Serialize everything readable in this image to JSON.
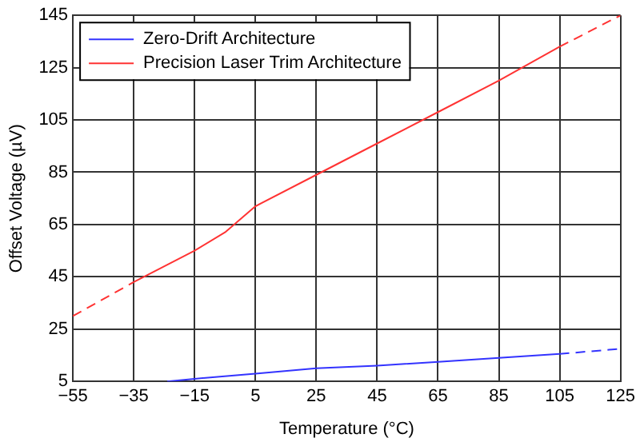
{
  "chart_data": {
    "type": "line",
    "xlabel": "Temperature (°C)",
    "ylabel": "Offset Voltage (µV)",
    "xlim": [
      -55,
      125
    ],
    "xticks": [
      -55,
      -35,
      -15,
      5,
      25,
      45,
      65,
      85,
      105,
      125
    ],
    "ylim": [
      5,
      145
    ],
    "yticks": [
      5,
      25,
      45,
      65,
      85,
      105,
      125,
      145
    ],
    "grid": true,
    "legend": "top left",
    "marker": "none",
    "series": [
      {
        "name": "Zero-Drift Architecture",
        "color": "#3333ff",
        "line_style": "solid",
        "x": [
          -24,
          -15,
          5,
          25,
          45,
          65,
          85,
          105
        ],
        "values": [
          5,
          6,
          8,
          10,
          11,
          12.5,
          14,
          15.5
        ]
      },
      {
        "color": "#3333ff",
        "line_style": "dashed",
        "x": [
          105,
          125
        ],
        "values": [
          15.5,
          17.5
        ]
      },
      {
        "name": "Precision Laser Trim Architecture",
        "color": "#ff3333",
        "line_style": "solid",
        "x": [
          -35,
          -15,
          -5,
          5,
          25,
          45,
          65,
          85,
          105
        ],
        "values": [
          43,
          55,
          62,
          72,
          84,
          96,
          108,
          120,
          133
        ]
      },
      {
        "color": "#ff3333",
        "line_style": "dashed",
        "x": [
          -55,
          -35
        ],
        "values": [
          30,
          43
        ]
      },
      {
        "color": "#ff3333",
        "line_style": "dashed",
        "x": [
          105,
          125
        ],
        "values": [
          133,
          145
        ]
      }
    ]
  }
}
